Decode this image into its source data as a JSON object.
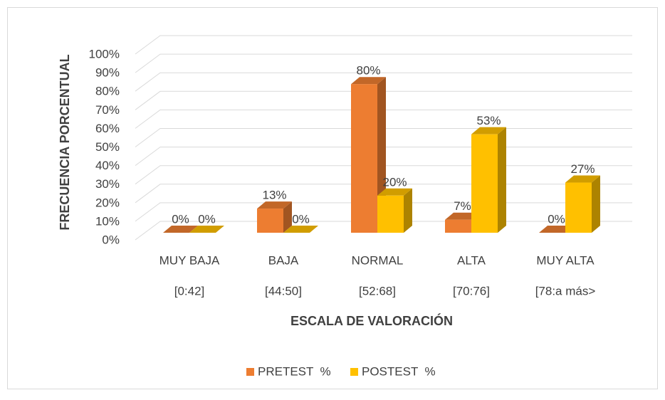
{
  "chart_data": {
    "type": "bar3d",
    "x_label": "ESCALA DE VALORACIÓN",
    "y_label": "FRECUENCIA PORCENTUAL",
    "categories": [
      "MUY BAJA",
      "BAJA",
      "NORMAL",
      "ALTA",
      "MUY ALTA"
    ],
    "category_ranges": [
      "[0:42]",
      "[44:50]",
      "[52:68]",
      "[70:76]",
      "[78:a más>"
    ],
    "series": [
      {
        "name": "PRETEST  %",
        "color": "#ED7D31",
        "values": [
          0,
          13,
          80,
          7,
          0
        ],
        "value_labels": [
          "0%",
          "13%",
          "80%",
          "7%",
          "0%"
        ]
      },
      {
        "name": "POSTEST  %",
        "color": "#FFC000",
        "values": [
          0,
          0,
          20,
          53,
          27
        ],
        "value_labels": [
          "0%",
          "0%",
          "20%",
          "53%",
          "27%"
        ]
      }
    ],
    "ylim": [
      0,
      100
    ],
    "yticks": [
      {
        "value": 0,
        "label": "0%"
      },
      {
        "value": 10,
        "label": "10%"
      },
      {
        "value": 20,
        "label": "20%"
      },
      {
        "value": 30,
        "label": "30%"
      },
      {
        "value": 40,
        "label": "40%"
      },
      {
        "value": 50,
        "label": "50%"
      },
      {
        "value": 60,
        "label": "60%"
      },
      {
        "value": 70,
        "label": "70%"
      },
      {
        "value": 80,
        "label": "80%"
      },
      {
        "value": 90,
        "label": "90%"
      },
      {
        "value": 100,
        "label": "100%"
      }
    ],
    "grid": true,
    "legend": "bottom"
  }
}
